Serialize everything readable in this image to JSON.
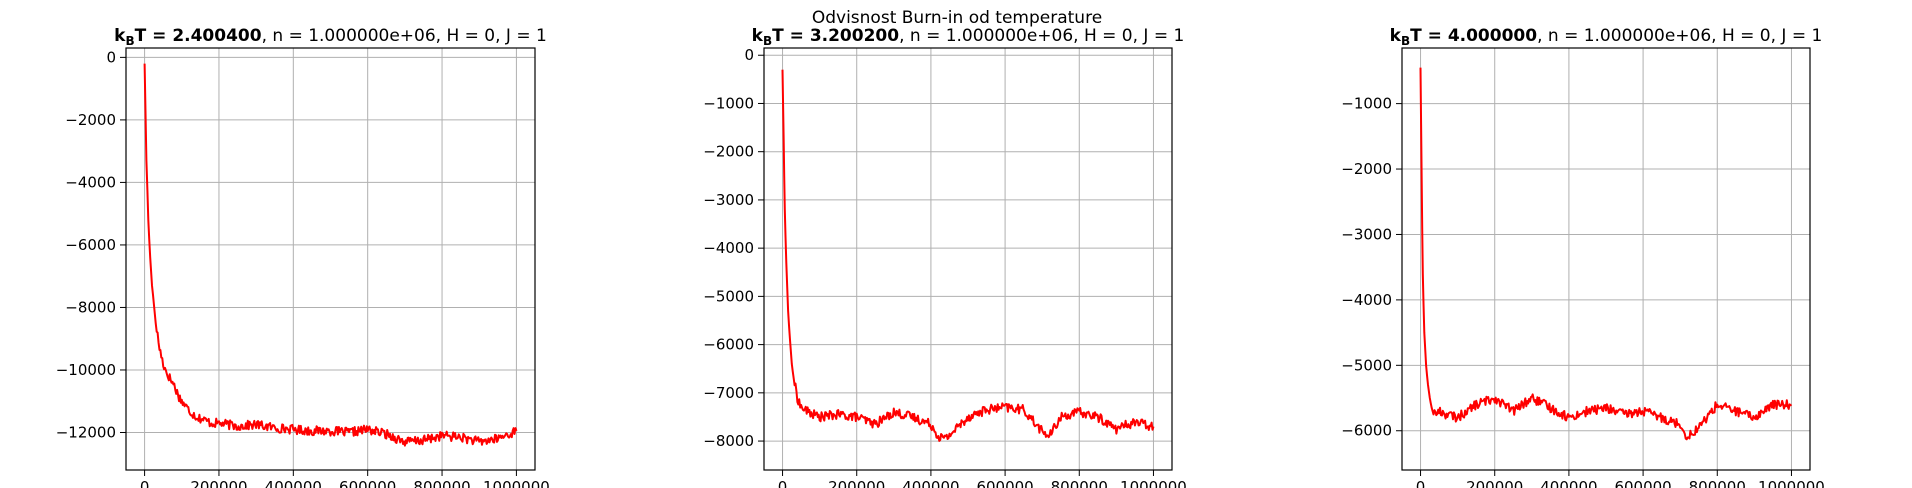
{
  "suptitle": "Odvisnost Burn-in od temperature",
  "chart_data": [
    {
      "type": "line",
      "title_bold": "k_BT = 2.400400",
      "title_rest": ", n = 1.000000e+06, H = 0, J = 1",
      "xlabel": "",
      "ylabel": "",
      "xlim": [
        -50000,
        1050000
      ],
      "ylim": [
        -13200,
        300
      ],
      "xticks": [
        0,
        200000,
        400000,
        600000,
        800000,
        1000000
      ],
      "yticks": [
        0,
        -2000,
        -4000,
        -6000,
        -8000,
        -10000,
        -12000
      ],
      "grid": true,
      "line_color": "#ff0000",
      "series": [
        {
          "x": [
            0,
            5000,
            10000,
            15000,
            20000,
            30000,
            40000,
            50000,
            60000,
            70000,
            80000,
            90000,
            100000,
            120000,
            140000,
            160000,
            180000,
            200000,
            250000,
            300000,
            350000,
            400000,
            450000,
            500000,
            550000,
            600000,
            650000,
            700000,
            750000,
            800000,
            850000,
            900000,
            950000,
            1000000
          ],
          "y": [
            -200,
            -3300,
            -5200,
            -6400,
            -7300,
            -8500,
            -9300,
            -9800,
            -10100,
            -10300,
            -10500,
            -10800,
            -11000,
            -11300,
            -11500,
            -11600,
            -11700,
            -11700,
            -11800,
            -11750,
            -11850,
            -11900,
            -11950,
            -11950,
            -12000,
            -11900,
            -12050,
            -12300,
            -12250,
            -12100,
            -12150,
            -12300,
            -12200,
            -11950
          ]
        }
      ]
    },
    {
      "type": "line",
      "title_bold": "k_BT = 3.200200",
      "title_rest": ", n = 1.000000e+06, H = 0, J = 1",
      "xlabel": "",
      "ylabel": "",
      "xlim": [
        -50000,
        1050000
      ],
      "ylim": [
        -8600,
        150
      ],
      "xticks": [
        0,
        200000,
        400000,
        600000,
        800000,
        1000000
      ],
      "yticks": [
        0,
        -1000,
        -2000,
        -3000,
        -4000,
        -5000,
        -6000,
        -7000,
        -8000
      ],
      "grid": true,
      "line_color": "#ff0000",
      "series": [
        {
          "x": [
            0,
            3000,
            6000,
            10000,
            15000,
            20000,
            25000,
            30000,
            35000,
            40000,
            50000,
            70000,
            100000,
            150000,
            200000,
            250000,
            300000,
            350000,
            400000,
            420000,
            440000,
            500000,
            550000,
            600000,
            650000,
            700000,
            720000,
            750000,
            800000,
            850000,
            900000,
            950000,
            1000000
          ],
          "y": [
            -300,
            -1800,
            -3200,
            -4300,
            -5300,
            -5900,
            -6400,
            -6700,
            -6900,
            -7100,
            -7300,
            -7400,
            -7500,
            -7450,
            -7500,
            -7650,
            -7400,
            -7500,
            -7650,
            -7900,
            -7950,
            -7500,
            -7350,
            -7300,
            -7350,
            -7800,
            -7900,
            -7500,
            -7400,
            -7500,
            -7750,
            -7600,
            -7700
          ]
        }
      ]
    },
    {
      "type": "line",
      "title_bold": "k_BT = 4.000000",
      "title_rest": ", n = 1.000000e+06, H = 0, J = 1",
      "xlabel": "",
      "ylabel": "",
      "xlim": [
        -50000,
        1050000
      ],
      "ylim": [
        -6600,
        -150
      ],
      "xticks": [
        0,
        200000,
        400000,
        600000,
        800000,
        1000000
      ],
      "yticks": [
        -1000,
        -2000,
        -3000,
        -4000,
        -5000,
        -6000
      ],
      "grid": true,
      "line_color": "#ff0000",
      "series": [
        {
          "x": [
            0,
            3000,
            6000,
            10000,
            15000,
            20000,
            25000,
            30000,
            40000,
            50000,
            70000,
            100000,
            150000,
            200000,
            250000,
            300000,
            350000,
            400000,
            450000,
            500000,
            550000,
            600000,
            650000,
            700000,
            720000,
            750000,
            800000,
            850000,
            900000,
            950000,
            1000000
          ],
          "y": [
            -450,
            -2200,
            -3600,
            -4500,
            -5000,
            -5300,
            -5500,
            -5650,
            -5750,
            -5700,
            -5750,
            -5800,
            -5600,
            -5500,
            -5700,
            -5500,
            -5650,
            -5800,
            -5700,
            -5650,
            -5750,
            -5700,
            -5800,
            -5900,
            -6100,
            -5950,
            -5600,
            -5700,
            -5800,
            -5600,
            -5600
          ]
        }
      ]
    }
  ]
}
